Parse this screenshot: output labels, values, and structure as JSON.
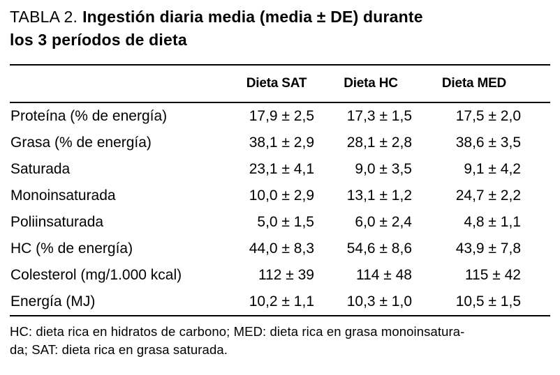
{
  "title": {
    "prefix": "TABLA 2.",
    "line1": "Ingestión diaria media (media ± DE) durante",
    "line2": "los 3 períodos de dieta"
  },
  "chart_data": {
    "type": "table",
    "title": "TABLA 2. Ingestión diaria media (media ± DE) durante los 3 períodos de dieta",
    "columns": [
      "Dieta SAT",
      "Dieta HC",
      "Dieta MED"
    ],
    "rows": [
      [
        "Proteína (% de energía)",
        "17,9 ± 2,5",
        "17,3 ± 1,5",
        "17,5 ± 2,0"
      ],
      [
        "Grasa (% de energía)",
        "38,1 ± 2,9",
        "28,1 ± 2,8",
        "38,6 ± 3,5"
      ],
      [
        "Saturada",
        "23,1 ± 4,1",
        "9,0 ± 3,5",
        "9,1 ± 4,2"
      ],
      [
        "Monoinsaturada",
        "10,0 ± 2,9",
        "13,1 ± 1,2",
        "24,7 ± 2,2"
      ],
      [
        "Poliinsaturada",
        "5,0 ± 1,5",
        "6,0 ± 2,4",
        "4,8 ± 1,1"
      ],
      [
        "HC (% de energía)",
        "44,0 ± 8,3",
        "54,6 ± 8,6",
        "43,9 ± 7,8"
      ],
      [
        "Colesterol (mg/1.000 kcal)",
        "112 ± 39",
        "114 ± 48",
        "115 ± 42"
      ],
      [
        "Energía (MJ)",
        "10,2 ± 1,1",
        "10,3 ± 1,0",
        "10,5 ± 1,5"
      ]
    ],
    "footnote": "HC: dieta rica en hidratos de carbono; MED: dieta rica en grasa monoinsaturada; SAT: dieta rica en grasa saturada."
  },
  "footnote": {
    "line1": "HC: dieta rica en hidratos de carbono; MED: dieta rica en grasa monoinsatura-",
    "line2": "da; SAT: dieta rica en grasa saturada."
  }
}
